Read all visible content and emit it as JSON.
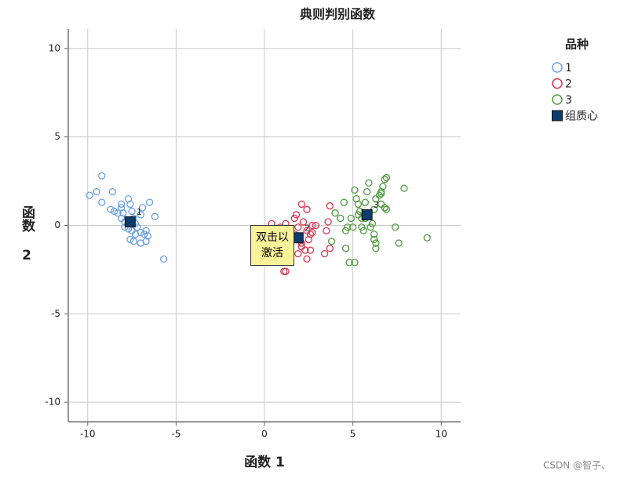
{
  "chart_data": {
    "type": "scatter",
    "title": "典则判别函数",
    "x_label": "函数 1",
    "y_label": "函数 2",
    "xlim": [
      -11.1,
      11.1
    ],
    "ylim": [
      -11.1,
      11.1
    ],
    "xticks": [
      -10,
      -5,
      0,
      5,
      10
    ],
    "yticks": [
      -10,
      -5,
      0,
      5,
      10
    ],
    "grid": true,
    "legend_title": "品种",
    "legend_position": "right",
    "series": [
      {
        "name": "1",
        "color": "#6a9fe2",
        "x": [
          -9.9,
          -9.5,
          -9.2,
          -9.2,
          -8.6,
          -8.7,
          -8.5,
          -8.3,
          -8.1,
          -8.1,
          -8.0,
          -8.1,
          -7.9,
          -7.7,
          -7.6,
          -7.5,
          -7.4,
          -7.3,
          -7.2,
          -7.5,
          -7.7,
          -7.9,
          -7.6,
          -7.4,
          -7.3,
          -7.0,
          -7.0,
          -6.9,
          -6.5,
          -6.2,
          -6.7,
          -6.6,
          -6.7,
          -7.0,
          -6.8,
          -5.7
        ],
        "y": [
          1.7,
          1.9,
          2.8,
          1.3,
          1.9,
          0.9,
          0.8,
          0.7,
          1.2,
          1.0,
          0.7,
          0.4,
          0.2,
          1.5,
          1.2,
          0.8,
          0.4,
          0.1,
          -0.1,
          -0.3,
          -0.2,
          -0.1,
          -0.8,
          -0.9,
          -0.5,
          -0.4,
          0.6,
          1.0,
          1.3,
          0.5,
          -0.3,
          -0.6,
          -0.9,
          -1.0,
          -0.5,
          -1.9
        ]
      },
      {
        "name": "2",
        "color": "#d8344f",
        "x": [
          0.4,
          0.9,
          1.2,
          1.4,
          1.7,
          1.8,
          2.1,
          2.4,
          1.9,
          2.2,
          2.4,
          2.6,
          2.7,
          2.9,
          2.6,
          2.4,
          2.3,
          2.1,
          1.7,
          1.6,
          1.4,
          1.2,
          1.1,
          1.9,
          2.1,
          2.5,
          2.7,
          3.4,
          3.7,
          3.6,
          3.7,
          3.5
        ],
        "y": [
          0.1,
          -0.1,
          0.1,
          -0.4,
          0.4,
          0.6,
          1.2,
          0.9,
          -0.1,
          0.2,
          -0.3,
          -0.5,
          0.0,
          0.0,
          -1.4,
          -1.9,
          -1.4,
          -1.0,
          -0.5,
          -0.8,
          -1.2,
          -2.6,
          -2.6,
          -1.6,
          -1.2,
          -0.8,
          -0.4,
          -1.6,
          -1.3,
          0.2,
          1.1,
          -0.3
        ]
      },
      {
        "name": "3",
        "color": "#4e9a3e",
        "x": [
          3.8,
          4.0,
          4.3,
          4.5,
          4.6,
          4.7,
          4.8,
          5.1,
          5.0,
          4.9,
          5.1,
          5.2,
          5.3,
          5.4,
          5.5,
          5.6,
          5.7,
          5.7,
          5.8,
          5.9,
          6.1,
          6.2,
          6.3,
          6.5,
          6.6,
          6.6,
          6.7,
          6.8,
          6.6,
          6.2,
          6.2,
          6.3,
          6.3,
          6.9,
          6.9,
          6.8,
          7.4,
          7.6,
          7.9,
          9.2,
          6.0,
          5.5,
          5.3,
          4.6
        ],
        "y": [
          -0.9,
          0.7,
          0.4,
          1.3,
          -0.3,
          -0.1,
          -2.1,
          -2.1,
          -0.1,
          0.4,
          2.0,
          1.5,
          1.2,
          0.8,
          -0.1,
          -0.3,
          0.4,
          1.3,
          1.9,
          2.4,
          0.1,
          0.9,
          1.5,
          1.7,
          1.8,
          1.9,
          2.2,
          1.0,
          1.2,
          -0.5,
          -0.8,
          -1.0,
          -1.3,
          0.9,
          2.7,
          2.6,
          -0.1,
          -1.0,
          2.1,
          -0.7,
          -0.1,
          0.4,
          0.6,
          -1.3
        ]
      }
    ],
    "centroids": {
      "name": "组质心",
      "color": "#0d3b6e",
      "x": [
        -7.6,
        1.9,
        5.8
      ],
      "y": [
        0.2,
        -0.7,
        0.6
      ]
    },
    "tooltip": [
      "双击以",
      "激活"
    ],
    "watermark": "CSDN @智子、"
  }
}
